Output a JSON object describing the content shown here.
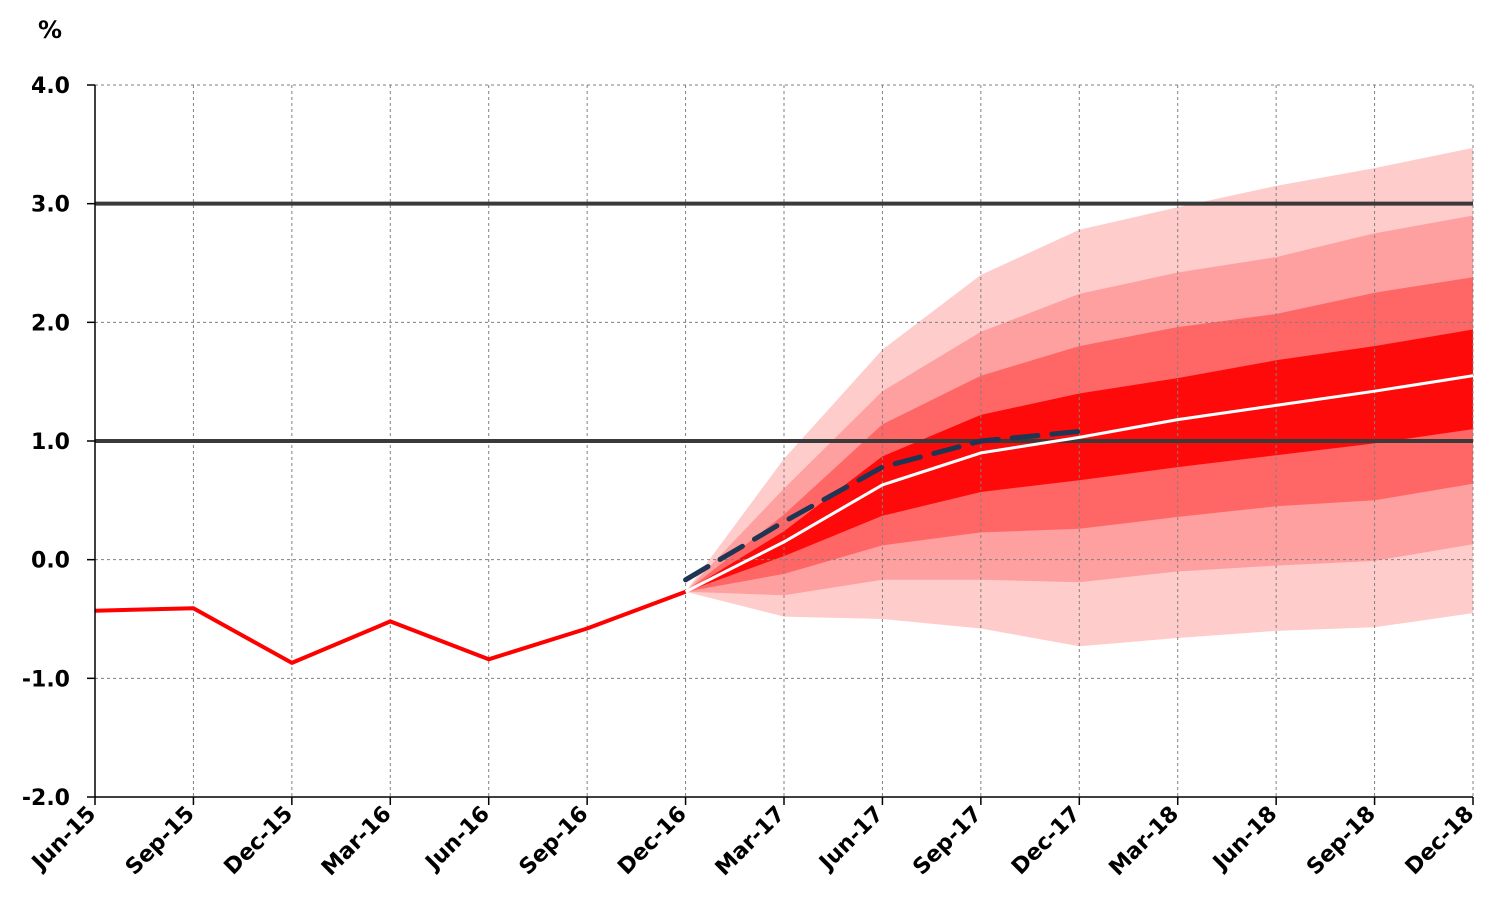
{
  "chart_data": {
    "type": "line",
    "title": "",
    "ylabel": "%",
    "xlabel": "",
    "ylim": [
      -2.0,
      4.0
    ],
    "yticks": [
      -2.0,
      -1.0,
      0.0,
      1.0,
      2.0,
      3.0,
      4.0
    ],
    "ytick_labels": [
      "-2.0",
      "-1.0",
      "0.0",
      "1.0",
      "2.0",
      "3.0",
      "4.0"
    ],
    "categories": [
      "Jun-15",
      "Sep-15",
      "Dec-15",
      "Mar-16",
      "Jun-16",
      "Sep-16",
      "Dec-16",
      "Mar-17",
      "Jun-17",
      "Sep-17",
      "Dec-17",
      "Mar-18",
      "Jun-18",
      "Sep-18",
      "Dec-18"
    ],
    "grid": true,
    "reference_lines": [
      1.0,
      3.0
    ],
    "colors": {
      "history": "#ff0000",
      "central": "#ffffff",
      "previous": "#1f3554",
      "band_inner": "#ff0a0a",
      "band_2": "#ff6666",
      "band_3": "#ffa0a0",
      "band_outer": "#ffcccc",
      "ref_line": "#3a3a3a",
      "grid": "#808080"
    },
    "history": {
      "x_start_index": 0,
      "values": [
        -0.43,
        -0.41,
        -0.87,
        -0.52,
        -0.84,
        -0.58,
        -0.27
      ]
    },
    "fan": {
      "x_start_index": 6,
      "central": [
        -0.27,
        0.15,
        0.63,
        0.9,
        1.03,
        1.18,
        1.3,
        1.42,
        1.55
      ],
      "bands": [
        {
          "lower": [
            -0.27,
            -0.48,
            -0.5,
            -0.58,
            -0.73,
            -0.66,
            -0.6,
            -0.57,
            -0.45
          ],
          "upper": [
            -0.27,
            0.85,
            1.77,
            2.4,
            2.78,
            2.97,
            3.15,
            3.3,
            3.47
          ]
        },
        {
          "lower": [
            -0.27,
            -0.3,
            -0.17,
            -0.17,
            -0.19,
            -0.1,
            -0.05,
            -0.01,
            0.13
          ],
          "upper": [
            -0.27,
            0.6,
            1.42,
            1.92,
            2.24,
            2.42,
            2.55,
            2.75,
            2.9
          ]
        },
        {
          "lower": [
            -0.27,
            -0.12,
            0.12,
            0.23,
            0.26,
            0.36,
            0.45,
            0.5,
            0.64
          ],
          "upper": [
            -0.27,
            0.38,
            1.14,
            1.55,
            1.8,
            1.96,
            2.07,
            2.25,
            2.38
          ]
        },
        {
          "lower": [
            -0.27,
            0.03,
            0.37,
            0.57,
            0.67,
            0.78,
            0.88,
            0.98,
            1.1
          ],
          "upper": [
            -0.27,
            0.24,
            0.87,
            1.22,
            1.4,
            1.53,
            1.68,
            1.8,
            1.94
          ]
        }
      ]
    },
    "previous_forecast": {
      "x_start_index": 6,
      "values": [
        -0.17,
        0.32,
        0.78,
        1.0,
        1.08
      ]
    }
  }
}
